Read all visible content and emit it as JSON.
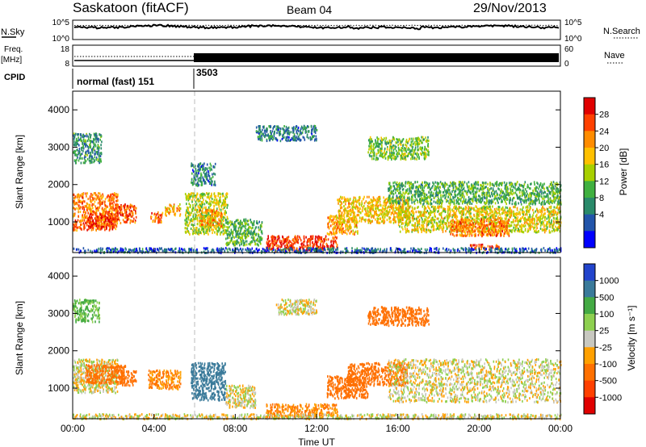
{
  "header": {
    "station": "Saskatoon (fitACF)",
    "beam": "Beam 04",
    "date": "29/Nov/2013"
  },
  "side_labels": {
    "nsky": "N.Sky",
    "nsearch": "N.Search",
    "freq": "Freq.",
    "freq_unit": "[MHz]",
    "nave": "Nave",
    "cpid": "CPID"
  },
  "cpid_segments": [
    {
      "label": "normal (fast) 151"
    },
    {
      "label": "3503"
    }
  ],
  "noise_axis": {
    "left_ticks": [
      "10^5",
      "10^0"
    ],
    "right_ticks": [
      "10^5",
      "10^0"
    ]
  },
  "freq_axis": {
    "left_ticks": [
      "18",
      "8"
    ],
    "right_ticks": [
      "60",
      "0"
    ]
  },
  "chart_data": [
    {
      "type": "heatmap",
      "name": "power",
      "ylabel": "Slant Range [km]",
      "xlabel": "",
      "x_range_hours": [
        0,
        24
      ],
      "ylim": [
        180,
        4500
      ],
      "y_ticks": [
        1000,
        2000,
        3000,
        4000
      ],
      "colorbar": {
        "label": "Power [dB]",
        "ticks": [
          "28",
          "24",
          "20",
          "16",
          "12",
          "8",
          "4"
        ],
        "colors": [
          "#e00000",
          "#ff4000",
          "#ff8c00",
          "#ffc000",
          "#a8d000",
          "#40b040",
          "#2a8a6a",
          "#2255aa",
          "#0000ff"
        ]
      },
      "cpid_change_hours": 6.0,
      "blobs": [
        {
          "t0": 0.0,
          "t1": 2.2,
          "r0": 800,
          "r1": 1800,
          "v": 24
        },
        {
          "t0": 0.7,
          "t1": 2.0,
          "r0": 850,
          "r1": 1250,
          "v": 28
        },
        {
          "t0": 2.0,
          "t1": 3.1,
          "r0": 1000,
          "r1": 1500,
          "v": 26
        },
        {
          "t0": 3.8,
          "t1": 4.4,
          "r0": 1000,
          "r1": 1300,
          "v": 24
        },
        {
          "t0": 4.5,
          "t1": 5.3,
          "r0": 1200,
          "r1": 1500,
          "v": 22
        },
        {
          "t0": 5.5,
          "t1": 7.6,
          "r0": 700,
          "r1": 1800,
          "v": 16
        },
        {
          "t0": 6.2,
          "t1": 7.3,
          "r0": 900,
          "r1": 1350,
          "v": 22
        },
        {
          "t0": 7.5,
          "t1": 9.3,
          "r0": 400,
          "r1": 1100,
          "v": 12
        },
        {
          "t0": 9.5,
          "t1": 13.0,
          "r0": 250,
          "r1": 650,
          "v": 28
        },
        {
          "t0": 12.5,
          "t1": 14.0,
          "r0": 700,
          "r1": 1200,
          "v": 22
        },
        {
          "t0": 13.0,
          "t1": 16.5,
          "r0": 1000,
          "r1": 1700,
          "v": 20
        },
        {
          "t0": 16.0,
          "t1": 24.0,
          "r0": 750,
          "r1": 1450,
          "v": 18
        },
        {
          "t0": 18.5,
          "t1": 21.5,
          "r0": 650,
          "r1": 1100,
          "v": 24
        },
        {
          "t0": 19.5,
          "t1": 21.0,
          "r0": 280,
          "r1": 420,
          "v": 26
        },
        {
          "t0": 15.5,
          "t1": 24.0,
          "r0": 1500,
          "r1": 2100,
          "v": 12
        },
        {
          "t0": 9.0,
          "t1": 12.0,
          "r0": 3200,
          "r1": 3600,
          "v": 8
        },
        {
          "t0": 14.5,
          "t1": 17.5,
          "r0": 2700,
          "r1": 3300,
          "v": 14
        },
        {
          "t0": 5.8,
          "t1": 7.0,
          "r0": 2000,
          "r1": 2600,
          "v": 8
        },
        {
          "t0": 0.0,
          "t1": 1.4,
          "r0": 2600,
          "r1": 3400,
          "v": 10
        },
        {
          "t0": 0.0,
          "t1": 24.0,
          "r0": 200,
          "r1": 330,
          "v": 6
        }
      ]
    },
    {
      "type": "heatmap",
      "name": "velocity",
      "ylabel": "Slant Range [km]",
      "xlabel": "Time UT",
      "x_range_hours": [
        0,
        24
      ],
      "x_ticks": [
        "00:00",
        "04:00",
        "08:00",
        "12:00",
        "16:00",
        "20:00",
        "00:00"
      ],
      "ylim": [
        180,
        4500
      ],
      "y_ticks": [
        1000,
        2000,
        3000,
        4000
      ],
      "colorbar": {
        "label": "Velocity [m s⁻¹]",
        "ticks": [
          "1000",
          "500",
          "100",
          "25",
          "-25",
          "-100",
          "-500",
          "-1000"
        ],
        "colors": [
          "#2244cc",
          "#3a7a9a",
          "#44aa44",
          "#8ed050",
          "#c8c8c0",
          "#ffa000",
          "#ff7000",
          "#ff4000",
          "#e00000"
        ]
      },
      "cpid_change_hours": 6.0,
      "blobs": [
        {
          "t0": 0.0,
          "t1": 2.2,
          "r0": 900,
          "r1": 1800,
          "v": 0
        },
        {
          "t0": 0.6,
          "t1": 2.6,
          "r0": 1150,
          "r1": 1650,
          "v": -300
        },
        {
          "t0": 2.2,
          "t1": 3.1,
          "r0": 1100,
          "r1": 1500,
          "v": -300
        },
        {
          "t0": 3.7,
          "t1": 5.3,
          "r0": 1000,
          "r1": 1500,
          "v": -100
        },
        {
          "t0": 5.8,
          "t1": 7.5,
          "r0": 700,
          "r1": 1700,
          "v": 700
        },
        {
          "t0": 7.5,
          "t1": 9.0,
          "r0": 500,
          "r1": 1100,
          "v": 0
        },
        {
          "t0": 9.5,
          "t1": 13.0,
          "r0": 250,
          "r1": 600,
          "v": -100
        },
        {
          "t0": 12.5,
          "t1": 14.5,
          "r0": 750,
          "r1": 1350,
          "v": -300
        },
        {
          "t0": 13.5,
          "t1": 16.5,
          "r0": 1100,
          "r1": 1700,
          "v": -200
        },
        {
          "t0": 15.5,
          "t1": 24.0,
          "r0": 650,
          "r1": 1800,
          "v": 0
        },
        {
          "t0": 14.5,
          "t1": 17.5,
          "r0": 2700,
          "r1": 3200,
          "v": -300
        },
        {
          "t0": 10.0,
          "t1": 12.0,
          "r0": 3000,
          "r1": 3400,
          "v": 0
        },
        {
          "t0": 0.0,
          "t1": 1.3,
          "r0": 2800,
          "r1": 3400,
          "v": 120
        },
        {
          "t0": 0.0,
          "t1": 24.0,
          "r0": 200,
          "r1": 330,
          "v": 0
        }
      ]
    }
  ]
}
